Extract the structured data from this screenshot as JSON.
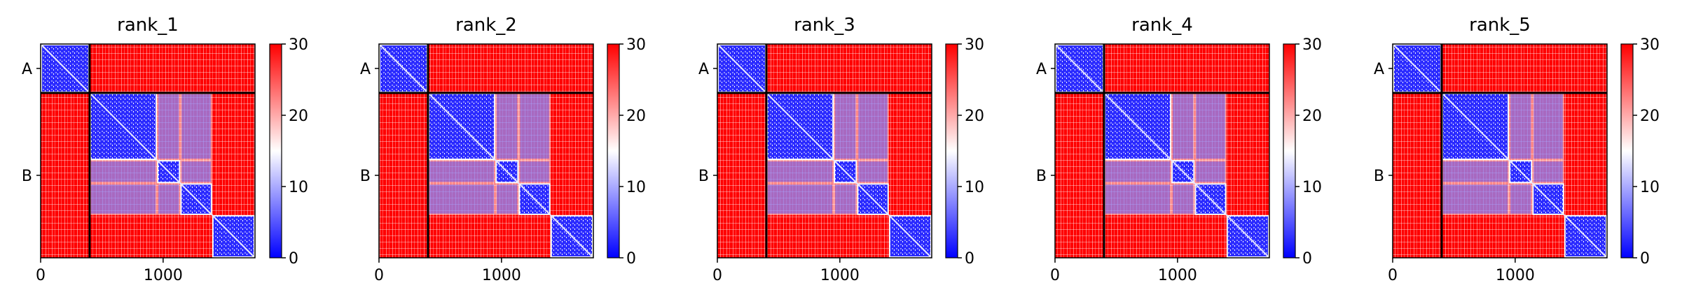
{
  "chart_data": {
    "type": "heatmap",
    "colormap": {
      "name": "bwr",
      "stops": [
        "#0000ff",
        "#ffffff",
        "#ff0000"
      ],
      "vmin": 0,
      "vmax": 30,
      "ticks": [
        "0",
        "10",
        "20",
        "30"
      ]
    },
    "axis": {
      "xlim": [
        0,
        1750
      ],
      "x_ticks": [
        {
          "value": 0,
          "label": "0"
        },
        {
          "value": 1000,
          "label": "1000"
        }
      ],
      "chains": [
        {
          "label": "A",
          "start": 0,
          "end": 400
        },
        {
          "label": "B",
          "start": 400,
          "end": 1750
        }
      ]
    },
    "domains": [
      {
        "start": 0,
        "end": 400
      },
      {
        "start": 400,
        "end": 950
      },
      {
        "start": 950,
        "end": 1140
      },
      {
        "start": 1140,
        "end": 1400
      },
      {
        "start": 1400,
        "end": 1750
      }
    ],
    "panels": [
      {
        "title": "rank_1"
      },
      {
        "title": "rank_2"
      },
      {
        "title": "rank_3"
      },
      {
        "title": "rank_4"
      },
      {
        "title": "rank_5"
      }
    ]
  }
}
